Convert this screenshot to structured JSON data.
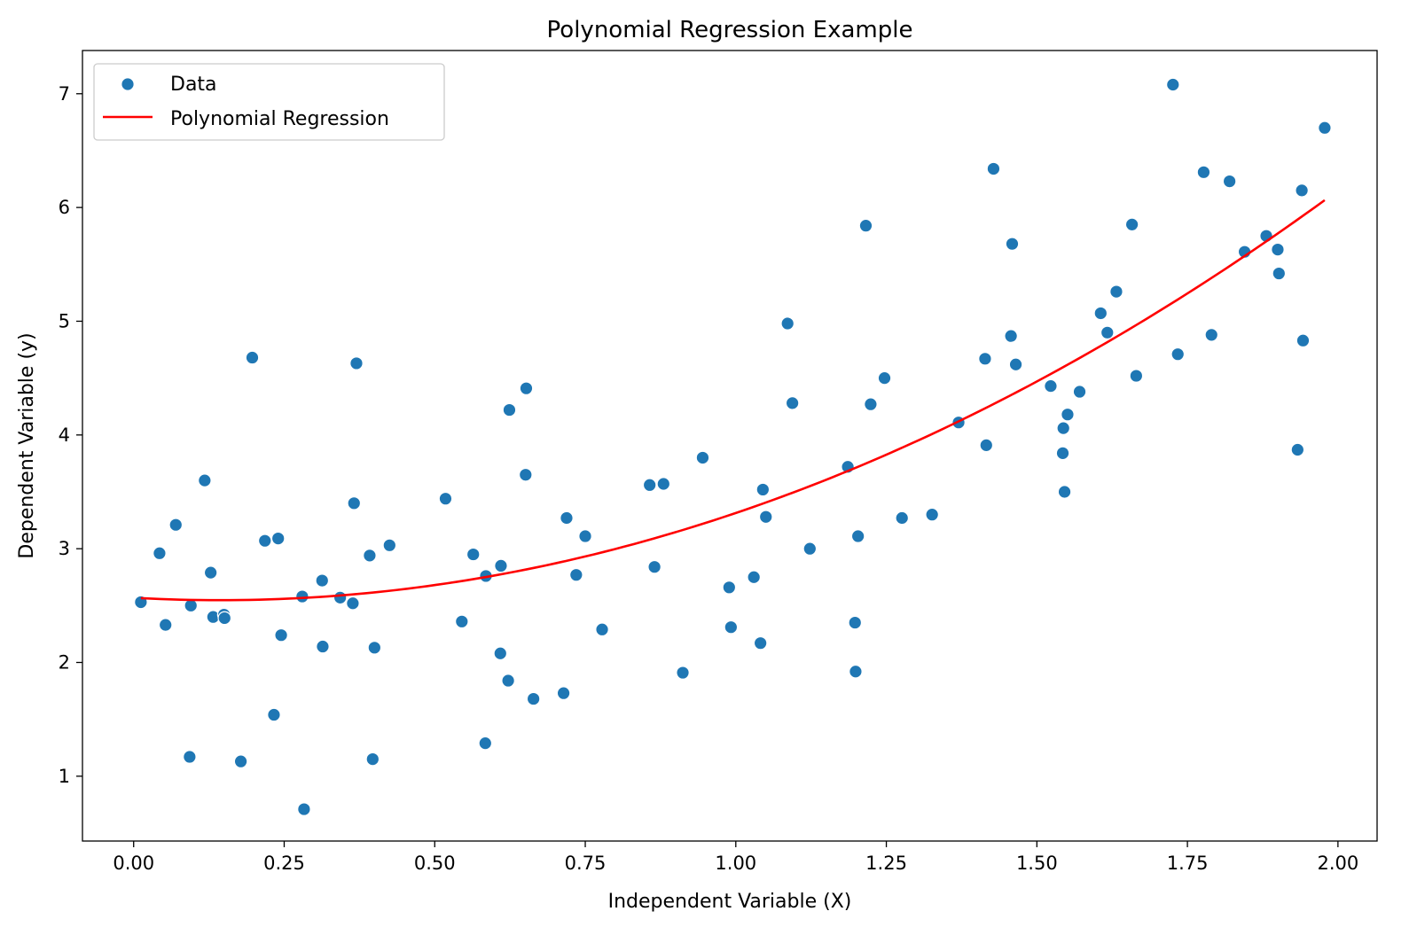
{
  "chart_data": {
    "type": "scatter",
    "title": "Polynomial Regression Example",
    "xlabel": "Independent Variable (X)",
    "ylabel": "Dependent Variable (y)",
    "xlim": [
      -0.085,
      2.065
    ],
    "ylim": [
      0.43,
      7.38
    ],
    "xticks": [
      0.0,
      0.25,
      0.5,
      0.75,
      1.0,
      1.25,
      1.5,
      1.75,
      2.0
    ],
    "xtick_labels": [
      "0.00",
      "0.25",
      "0.50",
      "0.75",
      "1.00",
      "1.25",
      "1.50",
      "1.75",
      "2.00"
    ],
    "yticks": [
      1,
      2,
      3,
      4,
      5,
      6,
      7
    ],
    "ytick_labels": [
      "1",
      "2",
      "3",
      "4",
      "5",
      "6",
      "7"
    ],
    "grid": false,
    "legend": {
      "position": "upper-left"
    },
    "colors": {
      "data": "#1f77b4",
      "fit": "#ff0000"
    },
    "series": [
      {
        "name": "Data",
        "kind": "scatter",
        "points": [
          [
            0.012,
            2.53
          ],
          [
            0.043,
            2.96
          ],
          [
            0.053,
            2.33
          ],
          [
            0.07,
            3.21
          ],
          [
            0.093,
            1.17
          ],
          [
            0.095,
            2.5
          ],
          [
            0.118,
            3.6
          ],
          [
            0.128,
            2.79
          ],
          [
            0.132,
            2.4
          ],
          [
            0.15,
            2.42
          ],
          [
            0.151,
            2.39
          ],
          [
            0.178,
            1.13
          ],
          [
            0.197,
            4.68
          ],
          [
            0.218,
            3.07
          ],
          [
            0.233,
            1.54
          ],
          [
            0.24,
            3.09
          ],
          [
            0.245,
            2.24
          ],
          [
            0.28,
            2.58
          ],
          [
            0.283,
            0.71
          ],
          [
            0.313,
            2.72
          ],
          [
            0.314,
            2.14
          ],
          [
            0.343,
            2.57
          ],
          [
            0.364,
            2.52
          ],
          [
            0.366,
            3.4
          ],
          [
            0.37,
            4.63
          ],
          [
            0.392,
            2.94
          ],
          [
            0.397,
            1.15
          ],
          [
            0.4,
            2.13
          ],
          [
            0.425,
            3.03
          ],
          [
            0.518,
            3.44
          ],
          [
            0.545,
            2.36
          ],
          [
            0.564,
            2.95
          ],
          [
            0.584,
            1.29
          ],
          [
            0.585,
            2.76
          ],
          [
            0.609,
            2.08
          ],
          [
            0.61,
            2.85
          ],
          [
            0.622,
            1.84
          ],
          [
            0.624,
            4.22
          ],
          [
            0.651,
            3.65
          ],
          [
            0.652,
            4.41
          ],
          [
            0.664,
            1.68
          ],
          [
            0.714,
            1.73
          ],
          [
            0.719,
            3.27
          ],
          [
            0.735,
            2.77
          ],
          [
            0.75,
            3.11
          ],
          [
            0.778,
            2.29
          ],
          [
            0.857,
            3.56
          ],
          [
            0.865,
            2.84
          ],
          [
            0.88,
            3.57
          ],
          [
            0.912,
            1.91
          ],
          [
            0.945,
            3.8
          ],
          [
            0.989,
            2.66
          ],
          [
            0.992,
            2.31
          ],
          [
            1.03,
            2.75
          ],
          [
            1.041,
            2.17
          ],
          [
            1.045,
            3.52
          ],
          [
            1.05,
            3.28
          ],
          [
            1.086,
            4.98
          ],
          [
            1.094,
            4.28
          ],
          [
            1.123,
            3.0
          ],
          [
            1.186,
            3.72
          ],
          [
            1.198,
            2.35
          ],
          [
            1.199,
            1.92
          ],
          [
            1.203,
            3.11
          ],
          [
            1.216,
            5.84
          ],
          [
            1.224,
            4.27
          ],
          [
            1.247,
            4.5
          ],
          [
            1.276,
            3.27
          ],
          [
            1.326,
            3.3
          ],
          [
            1.37,
            4.11
          ],
          [
            1.414,
            4.67
          ],
          [
            1.416,
            3.91
          ],
          [
            1.428,
            6.34
          ],
          [
            1.457,
            4.87
          ],
          [
            1.459,
            5.68
          ],
          [
            1.465,
            4.62
          ],
          [
            1.523,
            4.43
          ],
          [
            1.543,
            3.84
          ],
          [
            1.544,
            4.06
          ],
          [
            1.546,
            3.5
          ],
          [
            1.551,
            4.18
          ],
          [
            1.571,
            4.38
          ],
          [
            1.606,
            5.07
          ],
          [
            1.617,
            4.9
          ],
          [
            1.632,
            5.26
          ],
          [
            1.658,
            5.85
          ],
          [
            1.665,
            4.52
          ],
          [
            1.726,
            7.08
          ],
          [
            1.734,
            4.71
          ],
          [
            1.777,
            6.31
          ],
          [
            1.79,
            4.88
          ],
          [
            1.82,
            6.23
          ],
          [
            1.845,
            5.61
          ],
          [
            1.881,
            5.75
          ],
          [
            1.9,
            5.63
          ],
          [
            1.902,
            5.42
          ],
          [
            1.933,
            3.87
          ],
          [
            1.94,
            6.15
          ],
          [
            1.942,
            4.83
          ],
          [
            1.978,
            6.7
          ]
        ]
      },
      {
        "name": "Polynomial Regression",
        "kind": "line",
        "coefficients": [
          2.569,
          -0.3,
          1.045
        ]
      }
    ]
  }
}
